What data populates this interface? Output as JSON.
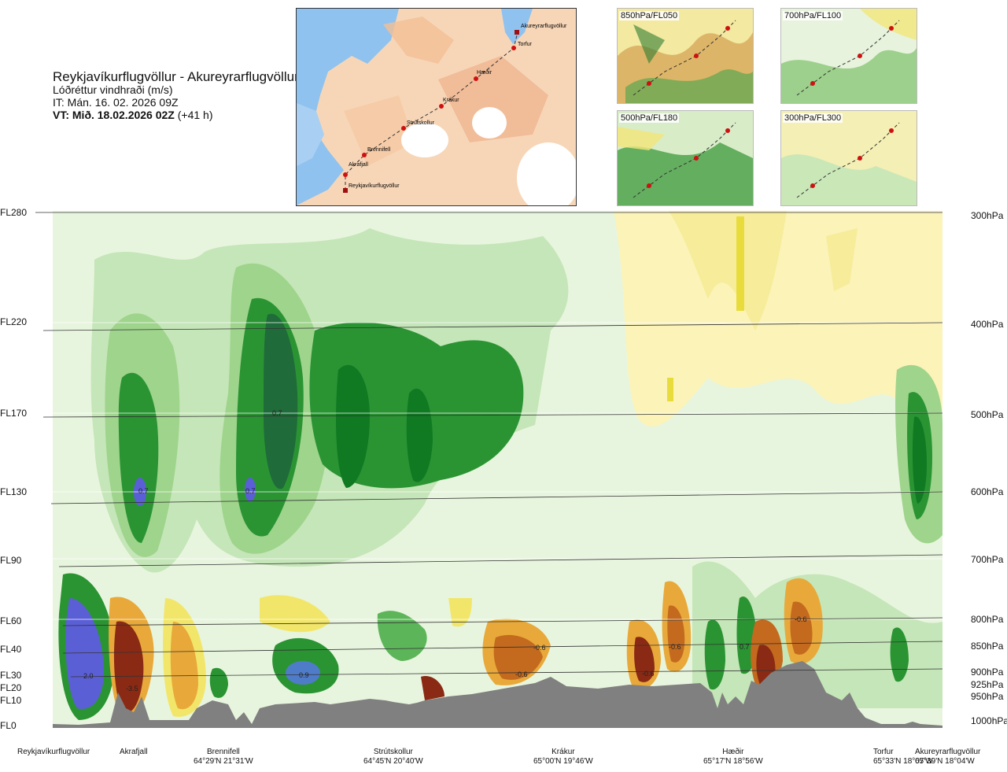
{
  "header": {
    "title": "Reykjavíkurflugvöllur - Akureyrarflugvöllur",
    "subtitle": "Lóðréttur vindhraði (m/s)",
    "issue_time": "IT: Mán. 16. 02. 2026 09Z",
    "valid_time_bold": "VT: Mið. 18.02.2026 02Z",
    "valid_time_offset": " (+41 h)"
  },
  "route_map": {
    "points": [
      "Akureyrarflugvöllur",
      "Torfur",
      "Hæðir",
      "Krákur",
      "Strútskollur",
      "Brennifell",
      "Akrafjall",
      "Reykjavíkurflugvöllur"
    ]
  },
  "mini_maps": [
    {
      "label": "850hPa/FL050"
    },
    {
      "label": "700hPa/FL100"
    },
    {
      "label": "500hPa/FL180"
    },
    {
      "label": "300hPa/FL300"
    }
  ],
  "flight_levels": [
    "FL280",
    "FL220",
    "FL170",
    "FL130",
    "FL90",
    "FL60",
    "FL40",
    "FL30",
    "FL20",
    "FL10",
    "FL0"
  ],
  "pressure_levels": [
    "300hPa",
    "400hPa",
    "500hPa",
    "600hPa",
    "700hPa",
    "800hPa",
    "850hPa",
    "900hPa",
    "925hPa",
    "950hPa",
    "1000hPa"
  ],
  "locations": [
    {
      "name": "Reykjavíkurflugvöllur",
      "coord": ""
    },
    {
      "name": "Akrafjall",
      "coord": ""
    },
    {
      "name": "Brennifell",
      "coord": "64°29'N 21°31'W"
    },
    {
      "name": "Strútskollur",
      "coord": "64°45'N 20°40'W"
    },
    {
      "name": "Krákur",
      "coord": "65°00'N 19°46'W"
    },
    {
      "name": "Hæðir",
      "coord": "65°17'N 18°56'W"
    },
    {
      "name": "Torfur",
      "coord": "65°33'N 18°07'W"
    },
    {
      "name": "Akureyrarflugvöllur",
      "coord": "65°39'N 18°04'W"
    }
  ],
  "chart_data": {
    "type": "heatmap",
    "title": "Lóðréttur vindhraði (m/s)",
    "xlabel": "",
    "ylabel": "",
    "colors": {
      "updraft_weak": "#e8f5de",
      "updraft_1": "#c5e6b8",
      "updraft_2": "#9fd48c",
      "updraft_3": "#5db55a",
      "updraft_4": "#2a9433",
      "updraft_5": "#0f7a22",
      "updraft_6": "#1f6b3a",
      "updraft_strong": "#5b5fd6",
      "downdraft_1": "#fbf3b8",
      "downdraft_2": "#f2e66a",
      "downdraft_3": "#e8a93a",
      "downdraft_4": "#c46a1f",
      "downdraft_5": "#8b2a14",
      "terrain": "#808080"
    },
    "contour_labels": [
      {
        "value": "0.7",
        "location": "Akrafjall",
        "level": "FL130"
      },
      {
        "value": "0.7",
        "location": "Brennifell–Strútskollur",
        "level": "FL170"
      },
      {
        "value": "0.7",
        "location": "Brennifell–Strútskollur",
        "level": "FL130"
      },
      {
        "value": "2.0",
        "location": "Reykjavíkurflugvöllur–Akrafjall",
        "level": "FL30"
      },
      {
        "value": "-3.5",
        "location": "Akrafjall",
        "level": "FL20"
      },
      {
        "value": "0.9",
        "location": "Brennifell–Strútskollur",
        "level": "FL30"
      },
      {
        "value": "-0.6",
        "location": "Krákur",
        "level": "FL40"
      },
      {
        "value": "-0.6",
        "location": "Krákur",
        "level": "FL30"
      },
      {
        "value": "-0.6",
        "location": "Hæðir",
        "level": "FL40"
      },
      {
        "value": "-0.6",
        "location": "Hæðir",
        "level": "FL30"
      },
      {
        "value": "0.7",
        "location": "Hæðir",
        "level": "FL40"
      },
      {
        "value": "-0.6",
        "location": "Hæðir–Torfur",
        "level": "FL60"
      }
    ]
  }
}
